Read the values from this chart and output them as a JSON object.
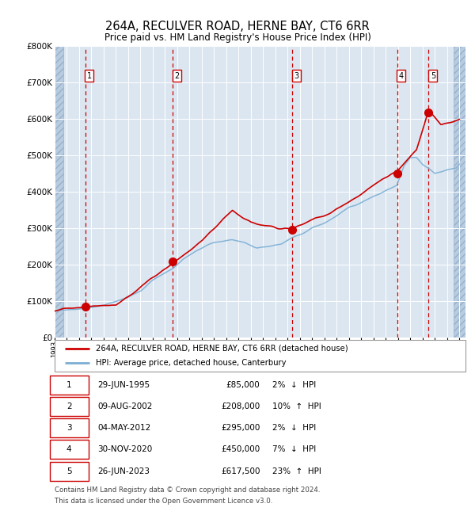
{
  "title": "264A, RECULVER ROAD, HERNE BAY, CT6 6RR",
  "subtitle": "Price paid vs. HM Land Registry's House Price Index (HPI)",
  "transactions": [
    {
      "label": "1",
      "date": "29-JUN-1995",
      "year": 1995.49,
      "price": 85000,
      "pct": "2%",
      "dir": "↓"
    },
    {
      "label": "2",
      "date": "09-AUG-2002",
      "year": 2002.6,
      "price": 208000,
      "pct": "10%",
      "dir": "↑"
    },
    {
      "label": "3",
      "date": "04-MAY-2012",
      "year": 2012.34,
      "price": 295000,
      "pct": "2%",
      "dir": "↓"
    },
    {
      "label": "4",
      "date": "30-NOV-2020",
      "year": 2020.92,
      "price": 450000,
      "pct": "7%",
      "dir": "↓"
    },
    {
      "label": "5",
      "date": "26-JUN-2023",
      "year": 2023.49,
      "price": 617500,
      "pct": "23%",
      "dir": "↑"
    }
  ],
  "legend_line1": "264A, RECULVER ROAD, HERNE BAY, CT6 6RR (detached house)",
  "legend_line2": "HPI: Average price, detached house, Canterbury",
  "footer1": "Contains HM Land Registry data © Crown copyright and database right 2024.",
  "footer2": "This data is licensed under the Open Government Licence v3.0.",
  "price_line_color": "#cc0000",
  "hpi_line_color": "#7bafd4",
  "plot_bg_color": "#dce6f1",
  "hatch_color": "#b8cce0",
  "grid_color": "#ffffff",
  "vline_color": "#cc0000",
  "marker_color": "#cc0000",
  "ylim": [
    0,
    800000
  ],
  "xlim": [
    1993.0,
    2026.5
  ],
  "hpi_anchors_x": [
    1993,
    1995.0,
    1996,
    1997,
    1998,
    1999,
    2000,
    2001,
    2002.6,
    2003.5,
    2004.5,
    2005.5,
    2006.5,
    2007.5,
    2008.5,
    2009.5,
    2010.5,
    2011.5,
    2012.3,
    2013,
    2014,
    2015,
    2016,
    2017,
    2018,
    2019,
    2020.0,
    2020.9,
    2021.5,
    2022.0,
    2022.5,
    2023.0,
    2023.5,
    2024.0,
    2024.5,
    2025.0,
    2026.0
  ],
  "hpi_anchors_y": [
    72000,
    80000,
    85000,
    90000,
    98000,
    108000,
    130000,
    160000,
    192000,
    220000,
    240000,
    258000,
    268000,
    272000,
    265000,
    252000,
    258000,
    268000,
    283000,
    295000,
    315000,
    330000,
    350000,
    375000,
    390000,
    410000,
    425000,
    435000,
    490000,
    510000,
    510000,
    490000,
    480000,
    465000,
    470000,
    478000,
    488000
  ],
  "price_anchors_x": [
    1993,
    1995.49,
    1998,
    2002.6,
    2005,
    2007.5,
    2009,
    2012.34,
    2015,
    2018,
    2020.92,
    2022.5,
    2023.49,
    2024.5,
    2026.0
  ],
  "price_anchors_y": [
    72000,
    85000,
    92000,
    208000,
    265000,
    340000,
    305000,
    295000,
    330000,
    390000,
    450000,
    510000,
    617500,
    580000,
    600000
  ],
  "yticks": [
    0,
    100000,
    200000,
    300000,
    400000,
    500000,
    600000,
    700000,
    800000
  ],
  "ytick_labels": [
    "£0",
    "£100K",
    "£200K",
    "£300K",
    "£400K",
    "£500K",
    "£600K",
    "£700K",
    "£800K"
  ]
}
